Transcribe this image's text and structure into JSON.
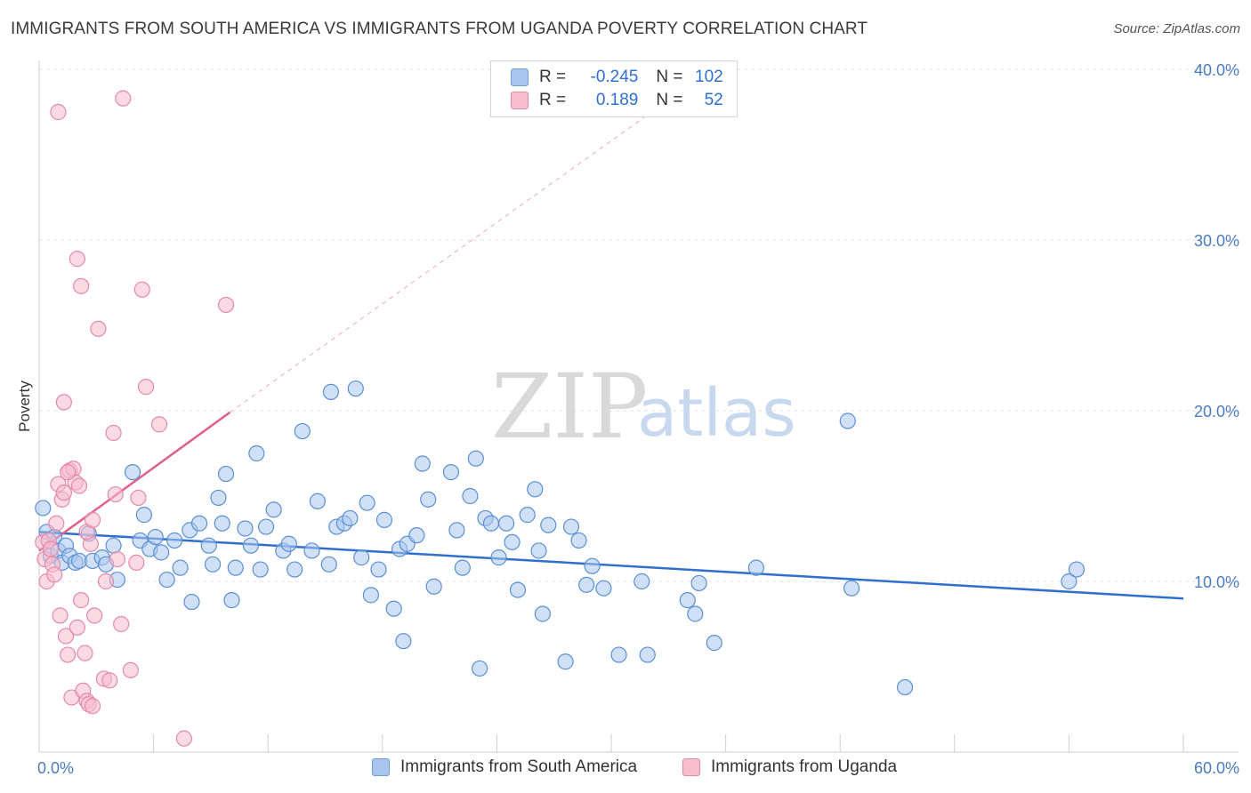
{
  "title": "IMMIGRANTS FROM SOUTH AMERICA VS IMMIGRANTS FROM UGANDA POVERTY CORRELATION CHART",
  "source": "Source: ZipAtlas.com",
  "watermark": {
    "zip": "ZIP",
    "atlas": "atlas"
  },
  "legend": {
    "rows": [
      {
        "r_label": "R = ",
        "r_value": "-0.245",
        "n_label": "N = ",
        "n_value": "102",
        "color": "#a9c6ee",
        "border": "#6f9ad8"
      },
      {
        "r_label": "R = ",
        "r_value": "0.189",
        "n_label": "N = ",
        "n_value": "52",
        "color": "#f7bccd",
        "border": "#e48aa8"
      }
    ]
  },
  "colors": {
    "blue_fill": "#a9c6ee",
    "blue_stroke": "#5b8fd6",
    "blue_line": "#2f6fcf",
    "pink_fill": "#f7bccd",
    "pink_stroke": "#e48aa8",
    "pink_line": "#e0608a",
    "axis_label": "#4a7cc4",
    "grid": "#e3e3e3"
  },
  "chart_data": {
    "type": "scatter",
    "title": "IMMIGRANTS FROM SOUTH AMERICA VS IMMIGRANTS FROM UGANDA POVERTY CORRELATION CHART",
    "xlabel": "",
    "ylabel": "Poverty",
    "xlim": [
      0,
      60
    ],
    "ylim": [
      0,
      40
    ],
    "x_tick_labels": [
      "0.0%",
      "60.0%"
    ],
    "y_tick_labels": [
      "10.0%",
      "20.0%",
      "30.0%",
      "40.0%"
    ],
    "y_ticks": [
      10,
      20,
      30,
      40
    ],
    "grid": "horizontal dashed",
    "legend_position": "bottom",
    "series": [
      {
        "name": "Immigrants from South America",
        "r": -0.245,
        "n": 102,
        "trend": {
          "x": [
            0,
            60
          ],
          "y": [
            12.9,
            9.0
          ]
        },
        "points": [
          [
            0.2,
            14.3
          ],
          [
            0.4,
            12.9
          ],
          [
            0.6,
            11.5
          ],
          [
            0.8,
            12.6
          ],
          [
            1.0,
            11.8
          ],
          [
            1.2,
            11.1
          ],
          [
            1.4,
            12.1
          ],
          [
            1.6,
            11.5
          ],
          [
            1.9,
            11.1
          ],
          [
            2.1,
            11.2
          ],
          [
            2.6,
            12.8
          ],
          [
            2.8,
            11.2
          ],
          [
            3.3,
            11.4
          ],
          [
            3.5,
            11.0
          ],
          [
            3.9,
            12.1
          ],
          [
            4.1,
            10.1
          ],
          [
            4.9,
            16.4
          ],
          [
            5.3,
            12.4
          ],
          [
            5.5,
            13.9
          ],
          [
            5.8,
            11.9
          ],
          [
            6.1,
            12.6
          ],
          [
            6.4,
            11.7
          ],
          [
            6.7,
            10.1
          ],
          [
            7.1,
            12.4
          ],
          [
            7.4,
            10.8
          ],
          [
            7.9,
            13.0
          ],
          [
            8.0,
            8.8
          ],
          [
            8.4,
            13.4
          ],
          [
            8.9,
            12.1
          ],
          [
            9.1,
            11.0
          ],
          [
            9.4,
            14.9
          ],
          [
            9.6,
            13.4
          ],
          [
            9.8,
            16.3
          ],
          [
            10.1,
            8.9
          ],
          [
            10.3,
            10.8
          ],
          [
            10.8,
            13.1
          ],
          [
            11.1,
            12.1
          ],
          [
            11.4,
            17.5
          ],
          [
            11.6,
            10.7
          ],
          [
            11.9,
            13.2
          ],
          [
            12.3,
            14.2
          ],
          [
            12.8,
            11.8
          ],
          [
            13.1,
            12.2
          ],
          [
            13.4,
            10.7
          ],
          [
            13.8,
            18.8
          ],
          [
            14.3,
            11.8
          ],
          [
            14.6,
            14.7
          ],
          [
            15.2,
            11.0
          ],
          [
            15.6,
            13.2
          ],
          [
            15.3,
            21.1
          ],
          [
            16.0,
            13.4
          ],
          [
            16.3,
            13.7
          ],
          [
            16.6,
            21.3
          ],
          [
            16.9,
            11.4
          ],
          [
            17.2,
            14.6
          ],
          [
            17.4,
            9.2
          ],
          [
            17.8,
            10.7
          ],
          [
            18.1,
            13.6
          ],
          [
            18.6,
            8.4
          ],
          [
            18.9,
            11.9
          ],
          [
            19.1,
            6.5
          ],
          [
            19.3,
            12.2
          ],
          [
            19.8,
            12.7
          ],
          [
            20.1,
            16.9
          ],
          [
            20.4,
            14.8
          ],
          [
            20.7,
            9.7
          ],
          [
            21.6,
            16.4
          ],
          [
            21.9,
            13.0
          ],
          [
            22.2,
            10.8
          ],
          [
            22.6,
            15.0
          ],
          [
            22.9,
            17.2
          ],
          [
            23.1,
            4.9
          ],
          [
            23.4,
            13.7
          ],
          [
            23.7,
            13.4
          ],
          [
            24.1,
            11.4
          ],
          [
            24.5,
            13.4
          ],
          [
            24.8,
            12.3
          ],
          [
            25.1,
            9.5
          ],
          [
            25.6,
            13.9
          ],
          [
            26.0,
            15.4
          ],
          [
            26.2,
            11.8
          ],
          [
            26.4,
            8.1
          ],
          [
            26.7,
            13.3
          ],
          [
            27.6,
            5.3
          ],
          [
            27.9,
            13.2
          ],
          [
            28.3,
            12.4
          ],
          [
            28.7,
            9.8
          ],
          [
            29.0,
            10.9
          ],
          [
            29.6,
            9.6
          ],
          [
            30.4,
            5.7
          ],
          [
            31.6,
            10.0
          ],
          [
            31.9,
            5.7
          ],
          [
            34.0,
            8.9
          ],
          [
            34.4,
            8.1
          ],
          [
            34.6,
            9.9
          ],
          [
            35.4,
            6.4
          ],
          [
            37.6,
            10.8
          ],
          [
            42.4,
            19.4
          ],
          [
            42.6,
            9.6
          ],
          [
            45.4,
            3.8
          ],
          [
            54.0,
            10.0
          ],
          [
            54.4,
            10.7
          ]
        ]
      },
      {
        "name": "Immigrants from Uganda",
        "r": 0.189,
        "n": 52,
        "trend": {
          "x": [
            0,
            10
          ],
          "y": [
            11.8,
            19.9
          ]
        },
        "trend_dashed": {
          "x": [
            10,
            32.5
          ],
          "y": [
            19.9,
            37.8
          ]
        },
        "points": [
          [
            0.2,
            12.3
          ],
          [
            0.3,
            11.3
          ],
          [
            0.4,
            10.0
          ],
          [
            0.5,
            12.4
          ],
          [
            0.6,
            11.9
          ],
          [
            0.7,
            11.0
          ],
          [
            0.8,
            10.4
          ],
          [
            0.9,
            13.4
          ],
          [
            1.0,
            15.7
          ],
          [
            1.1,
            8.0
          ],
          [
            1.2,
            14.8
          ],
          [
            1.3,
            15.2
          ],
          [
            1.4,
            6.8
          ],
          [
            1.5,
            5.7
          ],
          [
            1.6,
            16.5
          ],
          [
            1.7,
            3.2
          ],
          [
            1.8,
            16.6
          ],
          [
            1.9,
            15.8
          ],
          [
            2.0,
            7.3
          ],
          [
            2.1,
            15.6
          ],
          [
            2.2,
            8.9
          ],
          [
            2.3,
            3.6
          ],
          [
            2.4,
            5.8
          ],
          [
            2.5,
            3.0
          ],
          [
            2.6,
            2.8
          ],
          [
            2.7,
            12.2
          ],
          [
            2.8,
            2.7
          ],
          [
            1.0,
            37.5
          ],
          [
            1.3,
            20.5
          ],
          [
            1.5,
            16.4
          ],
          [
            2.0,
            28.9
          ],
          [
            2.2,
            27.3
          ],
          [
            2.5,
            12.9
          ],
          [
            2.8,
            13.6
          ],
          [
            2.9,
            8.0
          ],
          [
            3.1,
            24.8
          ],
          [
            3.4,
            4.3
          ],
          [
            3.5,
            10.0
          ],
          [
            3.7,
            4.2
          ],
          [
            3.9,
            18.7
          ],
          [
            4.0,
            15.1
          ],
          [
            4.1,
            11.3
          ],
          [
            4.3,
            7.5
          ],
          [
            4.4,
            38.3
          ],
          [
            4.8,
            4.8
          ],
          [
            5.1,
            11.1
          ],
          [
            5.2,
            14.9
          ],
          [
            5.4,
            27.1
          ],
          [
            5.6,
            21.4
          ],
          [
            6.3,
            19.2
          ],
          [
            7.6,
            0.8
          ],
          [
            9.8,
            26.2
          ]
        ]
      }
    ]
  }
}
